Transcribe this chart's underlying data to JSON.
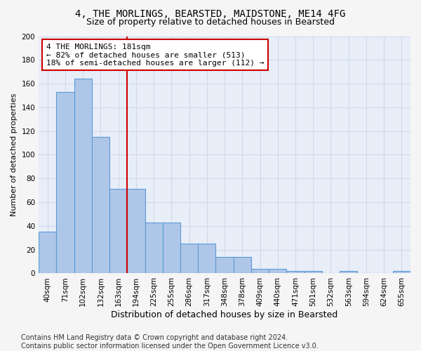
{
  "title1": "4, THE MORLINGS, BEARSTED, MAIDSTONE, ME14 4FG",
  "title2": "Size of property relative to detached houses in Bearsted",
  "xlabel": "Distribution of detached houses by size in Bearsted",
  "ylabel": "Number of detached properties",
  "bar_labels": [
    "40sqm",
    "71sqm",
    "102sqm",
    "132sqm",
    "163sqm",
    "194sqm",
    "225sqm",
    "255sqm",
    "286sqm",
    "317sqm",
    "348sqm",
    "378sqm",
    "409sqm",
    "440sqm",
    "471sqm",
    "501sqm",
    "532sqm",
    "563sqm",
    "594sqm",
    "624sqm",
    "655sqm"
  ],
  "bar_values": [
    35,
    153,
    164,
    115,
    71,
    71,
    43,
    43,
    25,
    25,
    14,
    14,
    4,
    4,
    2,
    2,
    0,
    2,
    0,
    0,
    2
  ],
  "bar_color": "#aec6e8",
  "bar_edge_color": "#5b9bd5",
  "annotation_text": "4 THE MORLINGS: 181sqm\n← 82% of detached houses are smaller (513)\n18% of semi-detached houses are larger (112) →",
  "annotation_box_color": "#ffffff",
  "annotation_box_edge": "#cc0000",
  "vline_color": "#cc0000",
  "vline_x": 5.0,
  "ylim": [
    0,
    200
  ],
  "yticks": [
    0,
    20,
    40,
    60,
    80,
    100,
    120,
    140,
    160,
    180,
    200
  ],
  "grid_color": "#d0d8ea",
  "background_color": "#e8eef8",
  "fig_background": "#f5f5f5",
  "footnote": "Contains HM Land Registry data © Crown copyright and database right 2024.\nContains public sector information licensed under the Open Government Licence v3.0.",
  "title1_fontsize": 10,
  "title2_fontsize": 9,
  "xlabel_fontsize": 9,
  "ylabel_fontsize": 8,
  "tick_fontsize": 7.5,
  "annotation_fontsize": 8,
  "footnote_fontsize": 7
}
